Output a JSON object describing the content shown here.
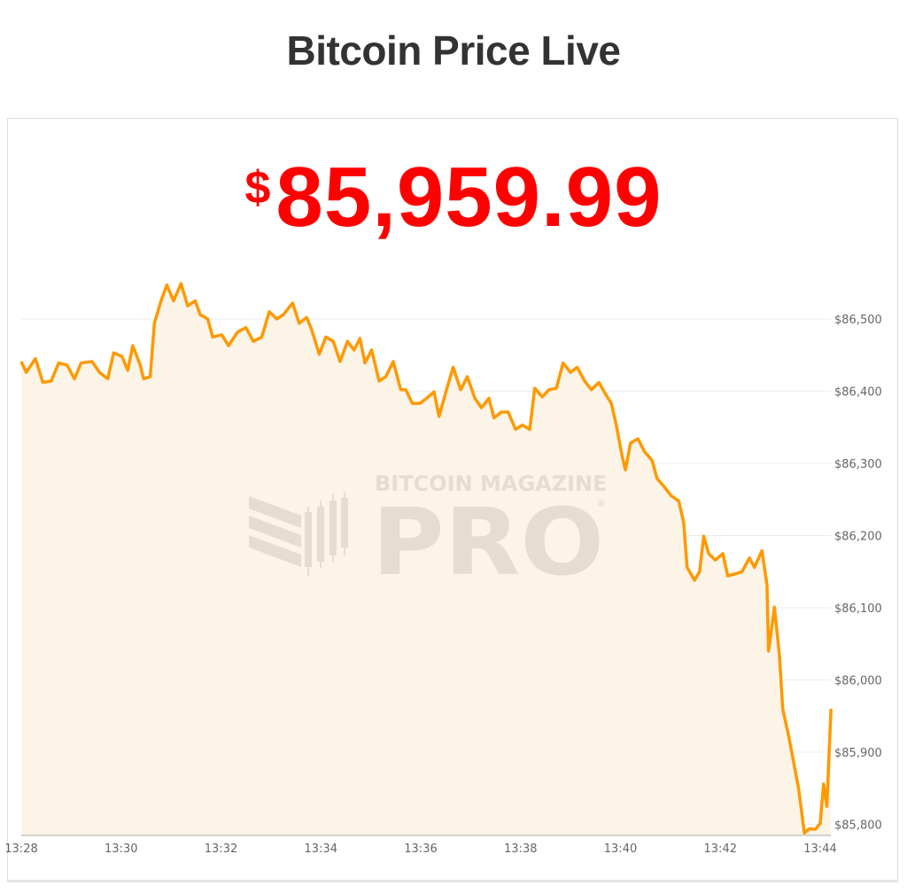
{
  "header": {
    "title": "Bitcoin Price Live"
  },
  "price": {
    "currency_symbol": "$",
    "value": "85,959.99",
    "color": "#ff0000"
  },
  "watermark": {
    "line1": "BITCOIN MAGAZINE",
    "line2": "PRO",
    "mark": "®"
  },
  "chart_data": {
    "type": "area",
    "title": "",
    "xlabel": "",
    "ylabel": "",
    "line_color": "#ff9900",
    "fill_color": "#fdf4e8",
    "grid": true,
    "y_axis_side": "right",
    "ylim": [
      85785,
      86570
    ],
    "xlim": [
      "13:28:00",
      "13:44:13"
    ],
    "x_ticks": [
      "13:28",
      "13:30",
      "13:32",
      "13:34",
      "13:36",
      "13:38",
      "13:40",
      "13:42",
      "13:44"
    ],
    "y_ticks": [
      85800,
      85900,
      86000,
      86100,
      86200,
      86300,
      86400,
      86500
    ],
    "y_tick_labels": [
      "$85,800",
      "$85,900",
      "$86,000",
      "$86,100",
      "$86,200",
      "$86,300",
      "$86,400",
      "$86,500"
    ],
    "x": [
      "13:28:00",
      "13:28:06",
      "13:28:17",
      "13:28:26",
      "13:28:36",
      "13:28:45",
      "13:28:55",
      "13:29:04",
      "13:29:12",
      "13:29:25",
      "13:29:34",
      "13:29:44",
      "13:29:51",
      "13:30:01",
      "13:30:08",
      "13:30:14",
      "13:30:23",
      "13:30:27",
      "13:30:35",
      "13:30:40",
      "13:30:48",
      "13:30:55",
      "13:31:03",
      "13:31:12",
      "13:31:20",
      "13:31:29",
      "13:31:35",
      "13:31:44",
      "13:31:50",
      "13:32:01",
      "13:32:09",
      "13:32:20",
      "13:32:30",
      "13:32:39",
      "13:32:49",
      "13:32:58",
      "13:33:07",
      "13:33:15",
      "13:33:26",
      "13:33:34",
      "13:33:43",
      "13:33:49",
      "13:33:58",
      "13:34:06",
      "13:34:15",
      "13:34:23",
      "13:34:32",
      "13:34:40",
      "13:34:47",
      "13:34:53",
      "13:35:01",
      "13:35:10",
      "13:35:18",
      "13:35:27",
      "13:35:36",
      "13:35:42",
      "13:35:50",
      "13:35:59",
      "13:36:07",
      "13:36:16",
      "13:36:22",
      "13:36:31",
      "13:36:39",
      "13:36:48",
      "13:36:56",
      "13:37:05",
      "13:37:13",
      "13:37:22",
      "13:37:28",
      "13:37:37",
      "13:37:45",
      "13:37:54",
      "13:38:02",
      "13:38:11",
      "13:38:17",
      "13:38:26",
      "13:38:34",
      "13:38:43",
      "13:38:51",
      "13:39:00",
      "13:39:08",
      "13:39:17",
      "13:39:25",
      "13:39:34",
      "13:39:42",
      "13:39:49",
      "13:39:55",
      "13:40:02",
      "13:40:06",
      "13:40:12",
      "13:40:21",
      "13:40:29",
      "13:40:38",
      "13:40:44",
      "13:40:53",
      "13:41:01",
      "13:41:10",
      "13:41:16",
      "13:41:20",
      "13:41:29",
      "13:41:35",
      "13:41:40",
      "13:41:46",
      "13:41:54",
      "13:42:03",
      "13:42:09",
      "13:42:18",
      "13:42:26",
      "13:42:35",
      "13:42:41",
      "13:42:50",
      "13:42:56",
      "13:42:58",
      "13:43:05",
      "13:43:11",
      "13:43:15",
      "13:43:22",
      "13:43:28",
      "13:43:34",
      "13:43:41",
      "13:43:47",
      "13:43:54",
      "13:44:00",
      "13:44:04",
      "13:44:08",
      "13:44:13"
    ],
    "y": [
      86441,
      86426,
      86445,
      86412,
      86414,
      86439,
      86436,
      86417,
      86439,
      86441,
      86426,
      86417,
      86453,
      86448,
      86429,
      86463,
      86436,
      86417,
      86420,
      86494,
      86525,
      86547,
      86525,
      86549,
      86518,
      86525,
      86506,
      86500,
      86475,
      86478,
      86463,
      86482,
      86488,
      86469,
      86475,
      86510,
      86500,
      86506,
      86522,
      86494,
      86502,
      86485,
      86451,
      86475,
      86469,
      86441,
      86469,
      86457,
      86473,
      86439,
      86457,
      86414,
      86420,
      86441,
      86402,
      86402,
      86383,
      86383,
      86390,
      86399,
      86365,
      86402,
      86433,
      86402,
      86420,
      86390,
      86377,
      86390,
      86363,
      86371,
      86371,
      86347,
      86353,
      86347,
      86404,
      86392,
      86402,
      86404,
      86439,
      86426,
      86433,
      86414,
      86402,
      86412,
      86396,
      86383,
      86353,
      86310,
      86291,
      86328,
      86334,
      86316,
      86304,
      86279,
      86267,
      86255,
      86248,
      86218,
      86156,
      86138,
      86150,
      86199,
      86175,
      86166,
      86175,
      86144,
      86147,
      86150,
      86169,
      86156,
      86179,
      86132,
      86040,
      86101,
      86034,
      85960,
      85923,
      85887,
      85850,
      85788,
      85794,
      85793,
      85801,
      85856,
      85825,
      85960
    ]
  }
}
